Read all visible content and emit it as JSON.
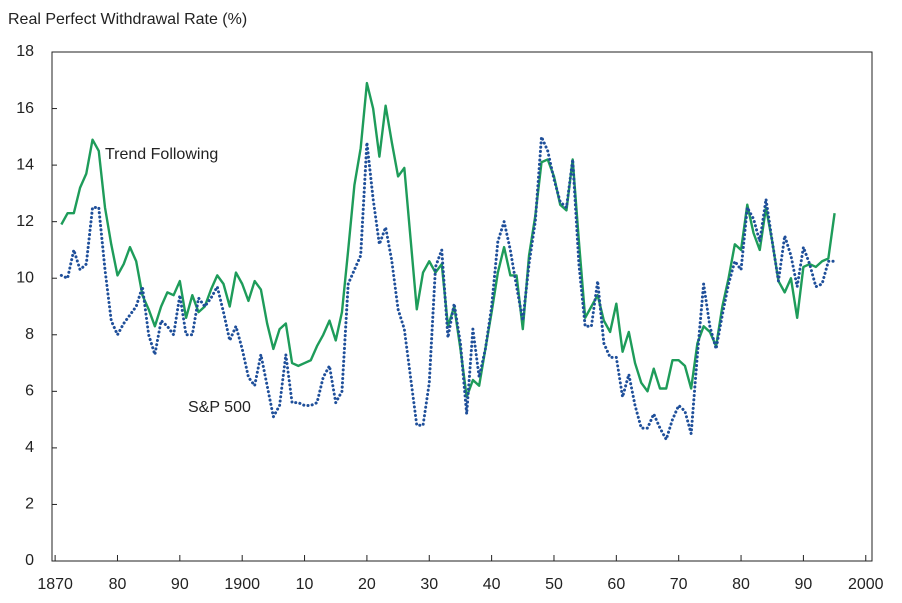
{
  "chart_data": {
    "type": "line",
    "y_label": "Real Perfect Withdrawal Rate (%)",
    "x": [
      1871,
      1872,
      1873,
      1874,
      1875,
      1876,
      1877,
      1878,
      1879,
      1880,
      1881,
      1882,
      1883,
      1884,
      1885,
      1886,
      1887,
      1888,
      1889,
      1890,
      1891,
      1892,
      1893,
      1894,
      1895,
      1896,
      1897,
      1898,
      1899,
      1900,
      1901,
      1902,
      1903,
      1904,
      1905,
      1906,
      1907,
      1908,
      1909,
      1910,
      1911,
      1912,
      1913,
      1914,
      1915,
      1916,
      1917,
      1918,
      1919,
      1920,
      1921,
      1922,
      1923,
      1924,
      1925,
      1926,
      1927,
      1928,
      1929,
      1930,
      1931,
      1932,
      1933,
      1934,
      1935,
      1936,
      1937,
      1938,
      1939,
      1940,
      1941,
      1942,
      1943,
      1944,
      1945,
      1946,
      1947,
      1948,
      1949,
      1950,
      1951,
      1952,
      1953,
      1954,
      1955,
      1956,
      1957,
      1958,
      1959,
      1960,
      1961,
      1962,
      1963,
      1964,
      1965,
      1966,
      1967,
      1968,
      1969,
      1970,
      1971,
      1972,
      1973,
      1974,
      1975,
      1976,
      1977,
      1978,
      1979,
      1980,
      1981,
      1982,
      1983,
      1984,
      1985,
      1986,
      1987,
      1988,
      1989,
      1990,
      1991,
      1992,
      1993,
      1994,
      1995
    ],
    "series": [
      {
        "name": "Trend Following",
        "color": "#1e9c5a",
        "style": "solid",
        "values": [
          11.9,
          12.3,
          12.3,
          13.2,
          13.7,
          14.9,
          14.5,
          12.5,
          11.2,
          10.1,
          10.5,
          11.1,
          10.6,
          9.4,
          8.9,
          8.3,
          9.0,
          9.5,
          9.4,
          9.9,
          8.6,
          9.4,
          8.8,
          9.0,
          9.6,
          10.1,
          9.8,
          9.0,
          10.2,
          9.8,
          9.2,
          9.9,
          9.6,
          8.4,
          7.5,
          8.2,
          8.4,
          7.0,
          6.9,
          7.0,
          7.1,
          7.6,
          8.0,
          8.5,
          7.8,
          8.8,
          11.0,
          13.3,
          14.6,
          16.9,
          16.0,
          14.3,
          16.1,
          14.8,
          13.6,
          13.9,
          11.4,
          8.9,
          10.2,
          10.6,
          10.2,
          10.5,
          8.3,
          9.0,
          7.5,
          5.8,
          6.4,
          6.2,
          7.5,
          8.8,
          10.2,
          11.1,
          10.1,
          10.1,
          8.2,
          10.8,
          12.2,
          14.1,
          14.2,
          13.6,
          12.6,
          12.4,
          14.2,
          11.3,
          8.6,
          9.0,
          9.4,
          8.5,
          8.1,
          9.1,
          7.4,
          8.1,
          7.0,
          6.3,
          6.0,
          6.8,
          6.1,
          6.1,
          7.1,
          7.1,
          6.9,
          6.1,
          7.7,
          8.3,
          8.1,
          7.6,
          9.0,
          10.0,
          11.2,
          11.0,
          12.6,
          11.6,
          11.0,
          12.5,
          11.3,
          9.9,
          9.5,
          10.0,
          8.6,
          10.4,
          10.5,
          10.4,
          10.6,
          10.7,
          12.3
        ]
      },
      {
        "name": "S&P 500",
        "color": "#1f4f9a",
        "style": "dotted",
        "values": [
          10.1,
          10.0,
          11.0,
          10.3,
          10.5,
          12.5,
          12.5,
          10.3,
          8.5,
          8.0,
          8.4,
          8.7,
          9.0,
          9.7,
          8.0,
          7.3,
          8.5,
          8.3,
          8.0,
          9.4,
          8.0,
          8.0,
          9.3,
          9.0,
          9.3,
          9.7,
          8.8,
          7.8,
          8.3,
          7.5,
          6.5,
          6.2,
          7.3,
          6.2,
          5.1,
          5.5,
          7.3,
          5.6,
          5.6,
          5.5,
          5.5,
          5.6,
          6.5,
          6.9,
          5.6,
          6.0,
          9.8,
          10.3,
          10.8,
          14.8,
          12.8,
          11.2,
          11.8,
          10.6,
          8.9,
          8.2,
          6.5,
          4.8,
          4.8,
          6.3,
          10.4,
          11.0,
          7.9,
          9.1,
          7.7,
          5.2,
          8.2,
          6.5,
          7.5,
          9.0,
          11.3,
          12.0,
          11.0,
          9.7,
          8.5,
          10.5,
          12.0,
          15.0,
          14.5,
          13.5,
          12.7,
          12.5,
          14.2,
          10.5,
          8.3,
          8.3,
          9.9,
          7.7,
          7.2,
          7.2,
          5.8,
          6.6,
          5.5,
          4.7,
          4.7,
          5.2,
          4.7,
          4.3,
          5.0,
          5.5,
          5.3,
          4.5,
          7.3,
          9.8,
          8.3,
          7.5,
          8.7,
          9.8,
          10.6,
          10.3,
          12.5,
          12.1,
          11.3,
          12.8,
          11.3,
          9.9,
          11.5,
          10.8,
          9.7,
          11.1,
          10.5,
          9.7,
          9.8,
          10.6,
          10.6
        ]
      }
    ],
    "xlim": [
      1869.5,
      2001
    ],
    "xticks": [
      1870,
      {
        "value": 1880,
        "label": "80"
      },
      {
        "value": 1890,
        "label": "90"
      },
      1900,
      {
        "value": 1910,
        "label": "10"
      },
      {
        "value": 1920,
        "label": "20"
      },
      {
        "value": 1930,
        "label": "30"
      },
      {
        "value": 1940,
        "label": "40"
      },
      {
        "value": 1950,
        "label": "50"
      },
      {
        "value": 1960,
        "label": "60"
      },
      {
        "value": 1970,
        "label": "70"
      },
      {
        "value": 1980,
        "label": "80"
      },
      {
        "value": 1990,
        "label": "90"
      },
      2000
    ],
    "ylim": [
      0,
      18
    ],
    "yticks": [
      0,
      2,
      4,
      6,
      8,
      10,
      12,
      14,
      16,
      18
    ],
    "grid": false
  }
}
